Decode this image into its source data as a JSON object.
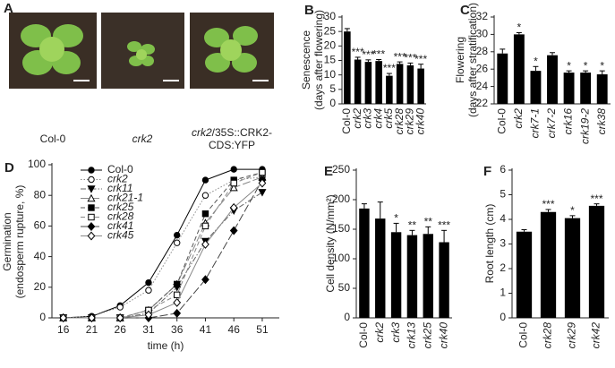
{
  "panel_a": {
    "panel": "A",
    "captions": [
      [
        "Col-0"
      ],
      [
        "crk2"
      ],
      [
        "crk2",
        "/35S::CRK2-",
        "CDS:YFP"
      ]
    ]
  },
  "chart_data": [
    {
      "type": "bar",
      "panel": "B",
      "ylabel": [
        "Senescence",
        "(days after flowering)"
      ],
      "categories": [
        "Col-0",
        "crk2",
        "crk3",
        "crk4",
        "crk5",
        "crk28",
        "crk29",
        "crk40"
      ],
      "values": [
        25,
        15.3,
        14.5,
        14.8,
        9.7,
        13.8,
        13.3,
        12.2
      ],
      "errors": [
        1,
        0.8,
        0.7,
        0.5,
        0.8,
        0.7,
        0.8,
        1.5
      ],
      "annotations": [
        null,
        "***",
        "***",
        "***",
        "***",
        "***",
        "***",
        "***"
      ],
      "color": "#000000",
      "ylim": [
        0,
        30
      ],
      "yticks": [
        0,
        5,
        10,
        15,
        20,
        25,
        30
      ]
    },
    {
      "type": "bar",
      "panel": "C",
      "ylabel": [
        "Flowering",
        "(days after stratification)"
      ],
      "categories": [
        "Col-0",
        "crk2",
        "crk7-1",
        "crk7-2",
        "crk16",
        "crk19-2",
        "crk38"
      ],
      "values": [
        27.8,
        30,
        25.8,
        27.6,
        25.6,
        25.6,
        25.4
      ],
      "errors": [
        0.5,
        0.2,
        0.5,
        0.3,
        0.2,
        0.2,
        0.4
      ],
      "annotations": [
        null,
        "*",
        "*",
        null,
        "*",
        "*",
        "*"
      ],
      "color": "#000000",
      "ylim": [
        22,
        32
      ],
      "yticks": [
        22,
        24,
        26,
        28,
        30,
        32
      ]
    },
    {
      "type": "line",
      "panel": "D",
      "ylabel": [
        "Germination",
        "(endosperm rupture, %)"
      ],
      "xlabel": "time (h)",
      "x": [
        16,
        21,
        26,
        31,
        36,
        41,
        46,
        51
      ],
      "xlim": [
        14,
        54
      ],
      "xticks": [
        16,
        21,
        26,
        31,
        36,
        41,
        46,
        51
      ],
      "ylim": [
        0,
        100
      ],
      "yticks": [
        0,
        20,
        40,
        60,
        80,
        100
      ],
      "series": [
        {
          "name": "Col-0",
          "color": "#000000",
          "marker": "circle",
          "dash": "solid",
          "values": [
            0,
            1,
            8,
            23,
            54,
            90,
            97,
            97
          ]
        },
        {
          "name": "crk2",
          "color": "#888888",
          "marker": "open-circle",
          "dash": "dotted",
          "values": [
            0,
            1,
            7,
            18,
            49,
            80,
            90,
            92
          ]
        },
        {
          "name": "crk11",
          "color": "#666666",
          "marker": "triangle-down",
          "dash": "dashdot",
          "values": [
            0,
            0,
            0,
            3,
            20,
            50,
            70,
            82
          ]
        },
        {
          "name": "crk21-1",
          "color": "#888888",
          "marker": "open-triangle",
          "dash": "longdash",
          "values": [
            0,
            0,
            0,
            5,
            22,
            62,
            85,
            92
          ]
        },
        {
          "name": "crk25",
          "color": "#555555",
          "marker": "square",
          "dash": "dashed",
          "values": [
            0,
            0,
            0,
            5,
            22,
            68,
            90,
            95
          ]
        },
        {
          "name": "crk28",
          "color": "#888888",
          "marker": "open-square",
          "dash": "dashed",
          "values": [
            0,
            0,
            0,
            5,
            15,
            60,
            88,
            95
          ]
        },
        {
          "name": "crk41",
          "color": "#444444",
          "marker": "diamond",
          "dash": "longdash",
          "values": [
            0,
            0,
            0,
            0,
            3,
            25,
            57,
            90
          ]
        },
        {
          "name": "crk45",
          "color": "#888888",
          "marker": "open-diamond",
          "dash": "solid",
          "values": [
            0,
            0,
            0,
            2,
            10,
            48,
            72,
            88
          ]
        }
      ]
    },
    {
      "type": "bar",
      "panel": "E",
      "ylabel": [
        "Cell density (N/mm²)"
      ],
      "categories": [
        "Col-0",
        "crk2",
        "crk3",
        "crk13",
        "crk25",
        "crk40"
      ],
      "values": [
        185,
        168,
        145,
        140,
        142,
        128
      ],
      "errors": [
        8,
        28,
        15,
        8,
        12,
        20
      ],
      "annotations": [
        null,
        null,
        "*",
        "**",
        "**",
        "***"
      ],
      "color": "#000000",
      "ylim": [
        0,
        250
      ],
      "yticks": [
        0,
        50,
        100,
        150,
        200,
        250
      ]
    },
    {
      "type": "bar",
      "panel": "F",
      "ylabel": [
        "Root length (cm)"
      ],
      "categories": [
        "Col-0",
        "crk28",
        "crk29",
        "crk42"
      ],
      "values": [
        3.5,
        4.3,
        4.05,
        4.55
      ],
      "errors": [
        0.08,
        0.1,
        0.1,
        0.08
      ],
      "annotations": [
        null,
        "***",
        "*",
        "***"
      ],
      "color": "#000000",
      "ylim": [
        0,
        6
      ],
      "yticks": [
        0,
        1,
        2,
        3,
        4,
        5,
        6
      ]
    }
  ]
}
